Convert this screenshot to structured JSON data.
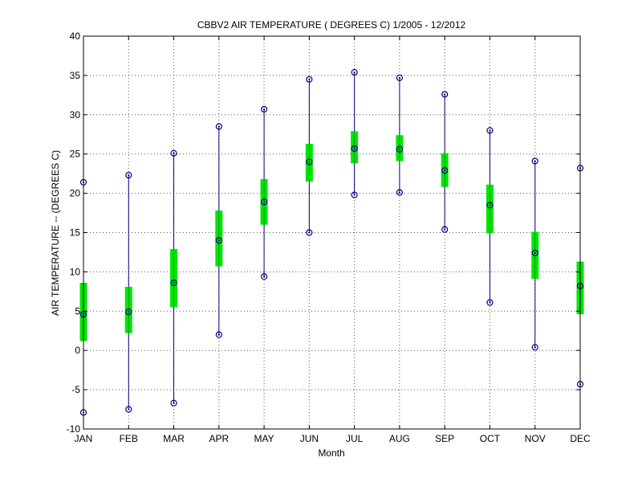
{
  "chart_data": {
    "type": "box",
    "title": "CBBV2  AIR TEMPERATURE ( DEGREES C) 1/2005 - 12/2012",
    "xlabel": "Month",
    "ylabel": "AIR TEMPERATURE -- (DEGREES C)",
    "ylim": [
      -10,
      40
    ],
    "yticks": [
      -10,
      -5,
      0,
      5,
      10,
      15,
      20,
      25,
      30,
      35,
      40
    ],
    "grid": true,
    "categories": [
      "JAN",
      "FEB",
      "MAR",
      "APR",
      "MAY",
      "JUN",
      "JUL",
      "AUG",
      "SEP",
      "OCT",
      "NOV",
      "DEC"
    ],
    "min": [
      -7.9,
      -7.5,
      -6.7,
      2.0,
      9.4,
      15.0,
      19.8,
      20.1,
      15.4,
      6.1,
      0.4,
      -4.3
    ],
    "q1": [
      1.2,
      2.2,
      5.5,
      10.7,
      16.0,
      21.5,
      23.8,
      24.1,
      20.8,
      14.9,
      9.1,
      4.6
    ],
    "median": [
      4.6,
      4.9,
      8.6,
      14.0,
      18.9,
      24.0,
      25.7,
      25.6,
      22.9,
      18.5,
      12.4,
      8.2
    ],
    "q3": [
      8.6,
      8.1,
      12.9,
      17.8,
      21.8,
      26.3,
      27.9,
      27.4,
      25.1,
      21.1,
      15.1,
      11.3
    ],
    "max": [
      21.4,
      22.3,
      25.1,
      28.5,
      30.7,
      34.5,
      35.4,
      34.7,
      32.6,
      28.0,
      24.1,
      23.2
    ]
  },
  "colors": {
    "whisker": "#000080",
    "box": "#00e600",
    "marker": "#000080",
    "grid": "#555555"
  }
}
